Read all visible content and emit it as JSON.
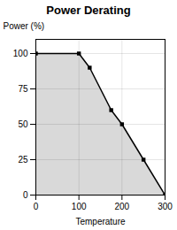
{
  "chart_data": {
    "type": "area",
    "title": "Power Derating",
    "x": [
      0,
      100,
      125,
      175,
      200,
      250,
      300
    ],
    "values": [
      100,
      100,
      90,
      60,
      50,
      25,
      0
    ],
    "xlabel": "Temperature",
    "ylabel": "Power (%)",
    "xlim": [
      0,
      300
    ],
    "xticks": [
      0,
      100,
      200,
      300
    ],
    "ylim": [
      0,
      110
    ],
    "yticks": [
      0,
      25,
      50,
      75,
      100
    ],
    "grid": true,
    "marker": "square"
  }
}
